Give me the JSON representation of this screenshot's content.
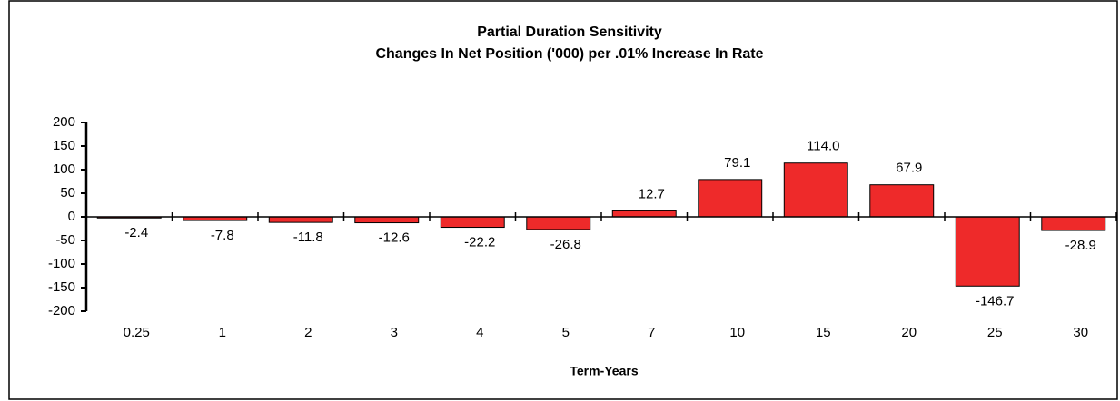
{
  "chart_data": {
    "type": "bar",
    "title": "Partial Duration Sensitivity",
    "subtitle": "Changes In Net Position  ('000) per .01% Increase In Rate",
    "x_label": "Term-Years",
    "categories": [
      "0.25",
      "1",
      "2",
      "3",
      "4",
      "5",
      "7",
      "10",
      "15",
      "20",
      "25",
      "30"
    ],
    "values": [
      -2.4,
      -7.8,
      -11.8,
      -12.6,
      -22.2,
      -26.8,
      12.7,
      79.1,
      114.0,
      67.9,
      -146.7,
      -28.9
    ],
    "value_labels": [
      "-2.4",
      "-7.8",
      "-11.8",
      "-12.6",
      "-22.2",
      "-26.8",
      "12.7",
      "79.1",
      "114.0",
      "67.9",
      "-146.7",
      "-28.9"
    ],
    "color": "#ee2a2a",
    "ylim": [
      -200,
      200
    ],
    "yticks": [
      -200,
      -150,
      -100,
      -50,
      0,
      50,
      100,
      150,
      200
    ],
    "grid": false
  }
}
